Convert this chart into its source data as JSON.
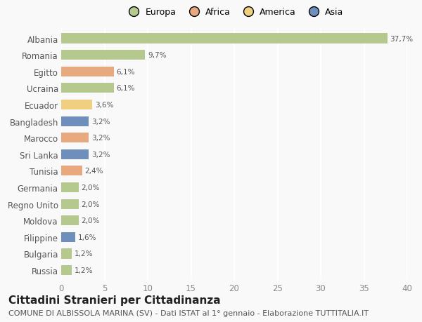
{
  "countries": [
    "Albania",
    "Romania",
    "Egitto",
    "Ucraina",
    "Ecuador",
    "Bangladesh",
    "Marocco",
    "Sri Lanka",
    "Tunisia",
    "Germania",
    "Regno Unito",
    "Moldova",
    "Filippine",
    "Bulgaria",
    "Russia"
  ],
  "values": [
    37.7,
    9.7,
    6.1,
    6.1,
    3.6,
    3.2,
    3.2,
    3.2,
    2.4,
    2.0,
    2.0,
    2.0,
    1.6,
    1.2,
    1.2
  ],
  "labels": [
    "37,7%",
    "9,7%",
    "6,1%",
    "6,1%",
    "3,6%",
    "3,2%",
    "3,2%",
    "3,2%",
    "2,4%",
    "2,0%",
    "2,0%",
    "2,0%",
    "1,6%",
    "1,2%",
    "1,2%"
  ],
  "colors": [
    "#b5c98e",
    "#b5c98e",
    "#e8a97e",
    "#b5c98e",
    "#f0d080",
    "#6e8fbb",
    "#e8a97e",
    "#6e8fbb",
    "#e8a97e",
    "#b5c98e",
    "#b5c98e",
    "#b5c98e",
    "#6e8fbb",
    "#b5c98e",
    "#b5c98e"
  ],
  "legend_labels": [
    "Europa",
    "Africa",
    "America",
    "Asia"
  ],
  "legend_colors": [
    "#b5c98e",
    "#e8a97e",
    "#f0d080",
    "#6e8fbb"
  ],
  "title": "Cittadini Stranieri per Cittadinanza",
  "subtitle": "COMUNE DI ALBISSOLA MARINA (SV) - Dati ISTAT al 1° gennaio - Elaborazione TUTTITALIA.IT",
  "xlim": [
    0,
    40
  ],
  "xticks": [
    0,
    5,
    10,
    15,
    20,
    25,
    30,
    35,
    40
  ],
  "background_color": "#f9f9f9",
  "grid_color": "#ffffff",
  "bar_height": 0.6,
  "title_fontsize": 11,
  "subtitle_fontsize": 8
}
